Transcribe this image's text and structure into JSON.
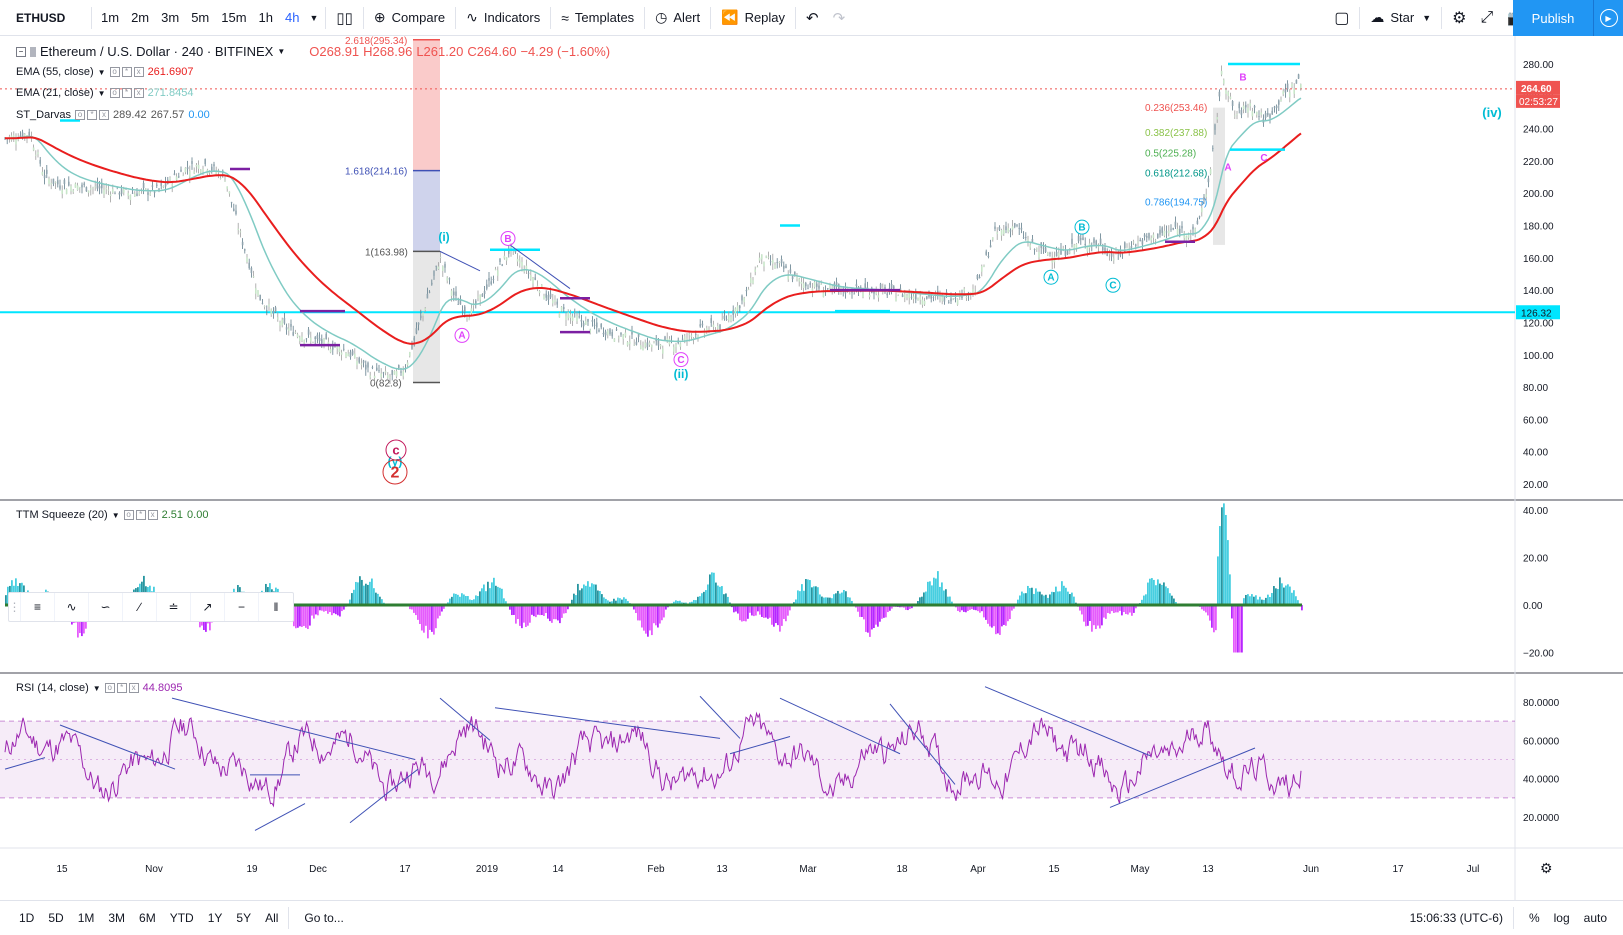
{
  "toolbar": {
    "symbol": "ETHUSD",
    "intervals": [
      "1m",
      "2m",
      "3m",
      "5m",
      "15m",
      "1h",
      "4h"
    ],
    "active_interval": "4h",
    "compare": "Compare",
    "indicators": "Indicators",
    "templates": "Templates",
    "alert": "Alert",
    "replay": "Replay",
    "star": "Star",
    "publish": "Publish"
  },
  "main_legend": {
    "title": "Ethereum / U.S. Dollar · 240 · BITFINEX",
    "open": "O268.91",
    "high": "H268.96",
    "low": "L261.20",
    "close": "C264.60",
    "change": "−4.29 (−1.60%)"
  },
  "indicators": {
    "ema55": {
      "label": "EMA (55, close)",
      "value": "261.6907"
    },
    "ema21": {
      "label": "EMA (21, close)",
      "value": "271.8454"
    },
    "darvas": {
      "label": "ST_Darvas",
      "v1": "289.42",
      "v2": "267.57",
      "v3": "0.00"
    },
    "ttm": {
      "label": "TTM Squeeze (20)",
      "v1": "2.51",
      "v2": "0.00"
    },
    "rsi": {
      "label": "RSI (14, close)",
      "value": "44.8095"
    }
  },
  "price_axis": {
    "labels": [
      "280.00",
      "260.00",
      "240.00",
      "220.00",
      "200.00",
      "180.00",
      "160.00",
      "140.00",
      "120.00",
      "100.00",
      "80.00",
      "60.00",
      "40.00",
      "20.00"
    ],
    "current_price": "264.60",
    "countdown": "02:53:27",
    "hline_price": "126.32"
  },
  "ttm_axis": {
    "labels": [
      "40.00",
      "20.00",
      "0.00",
      "−20.00"
    ]
  },
  "rsi_axis": {
    "labels": [
      "80.0000",
      "60.0000",
      "40.0000",
      "20.0000"
    ]
  },
  "time_axis": {
    "labels": [
      "15",
      "Nov",
      "19",
      "Dec",
      "17",
      "2019",
      "14",
      "Feb",
      "13",
      "Mar",
      "18",
      "Apr",
      "15",
      "May",
      "13",
      "Jun",
      "17",
      "Jul"
    ]
  },
  "fib_left": {
    "f2618": "2.618(295.34)",
    "f1618": "1.618(214.16)",
    "f1": "1(163.98)",
    "f0": "0(82.8)"
  },
  "fib_right": {
    "f236": "0.236(253.46)",
    "f382": "0.382(237.88)",
    "f5": "0.5(225.28)",
    "f618": "0.618(212.68)",
    "f786": "0.786(194.75)"
  },
  "wave_labels": {
    "iv": "(iv)",
    "ii": "(ii)",
    "i": "(i)",
    "y": "(y)",
    "c": "c",
    "two": "2",
    "A": "A",
    "B": "B",
    "C": "C"
  },
  "bottom": {
    "ranges": [
      "1D",
      "5D",
      "1M",
      "3M",
      "6M",
      "YTD",
      "1Y",
      "5Y",
      "All"
    ],
    "goto": "Go to...",
    "clock": "15:06:33 (UTC-6)",
    "percent": "%",
    "log": "log",
    "auto": "auto"
  },
  "colors": {
    "accent": "#2196f3",
    "ema55": "#e91e1e",
    "hline": "#00e5ff",
    "down": "#ef5350",
    "up": "#26a69a",
    "rsi": "#9c27b0",
    "cyan": "#00bcd4",
    "magenta": "#e040fb"
  }
}
